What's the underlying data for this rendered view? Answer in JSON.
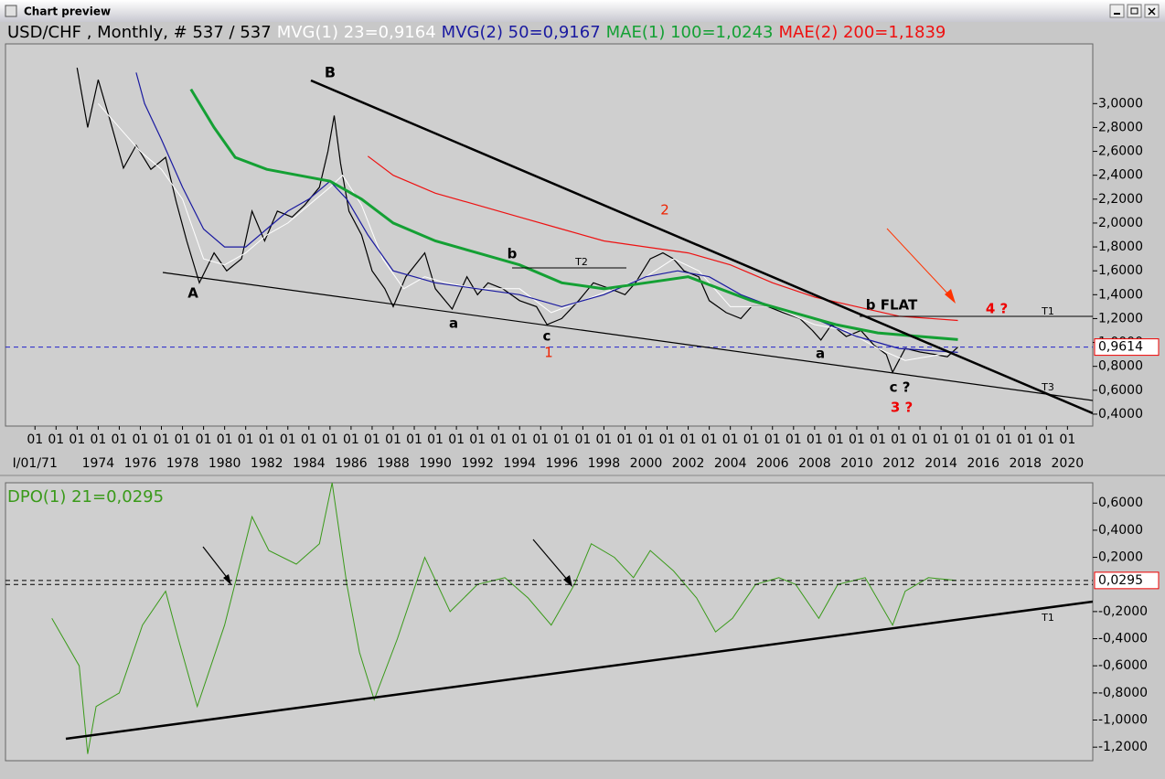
{
  "window": {
    "title": "Chart preview"
  },
  "chart_data": [
    {
      "type": "line",
      "series": [
        {
          "name": "USD/CHF , Monthly, # 537 / 537",
          "color": "#000000",
          "width": 1.2,
          "x": [
            1973.0,
            1973.5,
            1974.0,
            1974.5,
            1975.2,
            1975.8,
            1976.5,
            1977.2,
            1977.7,
            1978.2,
            1978.8,
            1979.5,
            1980.1,
            1980.8,
            1981.3,
            1981.9,
            1982.5,
            1983.2,
            1983.8,
            1984.5,
            1984.9,
            1985.2,
            1985.5,
            1985.9,
            1986.5,
            1987.0,
            1987.6,
            1988.0,
            1988.6,
            1989.5,
            1990.0,
            1990.8,
            1991.5,
            1992.0,
            1992.5,
            1993.2,
            1994.0,
            1994.8,
            1995.3,
            1996.0,
            1996.8,
            1997.5,
            1998.3,
            1999.0,
            1999.5,
            2000.2,
            2000.8,
            2001.3,
            2001.8,
            2002.5,
            2003.0,
            2003.8,
            2004.5,
            2005.0,
            2005.8,
            2006.5,
            2007.3,
            2007.9,
            2008.3,
            2008.8,
            2009.5,
            2010.2,
            2010.8,
            2011.4,
            2011.7,
            2012.3,
            2013.0,
            2013.7,
            2014.3,
            2014.8
          ],
          "values": [
            3.3,
            2.8,
            3.2,
            2.9,
            2.46,
            2.65,
            2.45,
            2.55,
            2.18,
            1.85,
            1.5,
            1.75,
            1.6,
            1.7,
            2.1,
            1.85,
            2.1,
            2.05,
            2.15,
            2.3,
            2.6,
            2.9,
            2.5,
            2.1,
            1.9,
            1.6,
            1.45,
            1.3,
            1.55,
            1.75,
            1.45,
            1.28,
            1.55,
            1.4,
            1.5,
            1.45,
            1.35,
            1.3,
            1.15,
            1.2,
            1.35,
            1.5,
            1.45,
            1.4,
            1.5,
            1.7,
            1.75,
            1.7,
            1.6,
            1.55,
            1.35,
            1.25,
            1.2,
            1.3,
            1.3,
            1.25,
            1.2,
            1.1,
            1.02,
            1.15,
            1.05,
            1.1,
            0.98,
            0.9,
            0.75,
            0.95,
            0.92,
            0.9,
            0.88,
            0.9614
          ]
        },
        {
          "name": "MVG(1) 23=0,9164",
          "color": "#ffffff",
          "width": 1,
          "x": [
            1974,
            1975,
            1976,
            1977,
            1978,
            1979,
            1980,
            1981,
            1982,
            1983,
            1984,
            1985,
            1985.6,
            1986.5,
            1987.5,
            1988.5,
            1989.5,
            1990.5,
            1992,
            1994,
            1995.5,
            1997,
            1998.5,
            2000,
            2001.3,
            2002.5,
            2004,
            2006,
            2008,
            2009.5,
            2011,
            2012.3,
            2014,
            2014.8
          ],
          "values": [
            3.0,
            2.8,
            2.6,
            2.45,
            2.2,
            1.7,
            1.65,
            1.75,
            1.9,
            2.0,
            2.15,
            2.3,
            2.4,
            2.15,
            1.7,
            1.45,
            1.55,
            1.5,
            1.45,
            1.45,
            1.25,
            1.35,
            1.45,
            1.55,
            1.7,
            1.6,
            1.3,
            1.3,
            1.15,
            1.1,
            0.95,
            0.85,
            0.9,
            0.9164
          ]
        },
        {
          "name": "MVG(2) 50=0,9167",
          "color": "#1a1aa0",
          "width": 1.2,
          "x": [
            1975.8,
            1976.2,
            1977,
            1978,
            1979,
            1980,
            1981,
            1982,
            1983,
            1984,
            1985,
            1985.8,
            1986.8,
            1988,
            1989,
            1990,
            1992,
            1994,
            1996,
            1998,
            2000,
            2001.5,
            2003,
            2004.5,
            2006,
            2008,
            2010,
            2012,
            2014.8
          ],
          "values": [
            3.26,
            3.0,
            2.7,
            2.3,
            1.95,
            1.8,
            1.8,
            1.95,
            2.1,
            2.2,
            2.35,
            2.2,
            1.9,
            1.6,
            1.55,
            1.5,
            1.45,
            1.4,
            1.3,
            1.4,
            1.55,
            1.6,
            1.55,
            1.4,
            1.3,
            1.2,
            1.05,
            0.95,
            0.9167
          ]
        },
        {
          "name": "MAE(1) 100=1,0243",
          "color": "#14a034",
          "width": 3,
          "x": [
            1978.4,
            1979.5,
            1980.5,
            1982,
            1983.5,
            1985,
            1986.5,
            1988,
            1990,
            1992,
            1994,
            1996,
            1998,
            2000,
            2002,
            2003.5,
            2005,
            2007,
            2009,
            2011,
            2013,
            2014.8
          ],
          "values": [
            3.12,
            2.8,
            2.55,
            2.45,
            2.4,
            2.35,
            2.2,
            2.0,
            1.85,
            1.75,
            1.65,
            1.5,
            1.45,
            1.5,
            1.55,
            1.45,
            1.35,
            1.25,
            1.15,
            1.08,
            1.05,
            1.0243
          ]
        },
        {
          "name": "MAE(2) 200=1,1839",
          "color": "#ee1111",
          "width": 1.2,
          "x": [
            1986.8,
            1988,
            1990,
            1992,
            1994,
            1996,
            1998,
            2000,
            2002,
            2004,
            2006,
            2008,
            2010,
            2012,
            2014.8
          ],
          "values": [
            2.56,
            2.4,
            2.25,
            2.15,
            2.05,
            1.95,
            1.85,
            1.8,
            1.75,
            1.65,
            1.5,
            1.38,
            1.3,
            1.22,
            1.1839
          ]
        }
      ],
      "last_value": 0.9614,
      "last_value_label": "0,9614",
      "xlim": [
        1969.6,
        2021.2
      ],
      "xticks": [
        {
          "value": 1971,
          "label": "01"
        },
        {
          "value": 1972,
          "label": "01"
        },
        {
          "value": 1973,
          "label": "01"
        },
        {
          "value": 1974,
          "label": "01"
        },
        {
          "value": 1975,
          "label": "01"
        },
        {
          "value": 1976,
          "label": "01"
        },
        {
          "value": 1977,
          "label": "01"
        },
        {
          "value": 1978,
          "label": "01"
        },
        {
          "value": 1979,
          "label": "01"
        },
        {
          "value": 1980,
          "label": "01"
        },
        {
          "value": 1981,
          "label": "01"
        },
        {
          "value": 1982,
          "label": "01"
        },
        {
          "value": 1983,
          "label": "01"
        },
        {
          "value": 1984,
          "label": "01"
        },
        {
          "value": 1985,
          "label": "01"
        },
        {
          "value": 1986,
          "label": "01"
        },
        {
          "value": 1987,
          "label": "01"
        },
        {
          "value": 1988,
          "label": "01"
        },
        {
          "value": 1989,
          "label": "01"
        },
        {
          "value": 1990,
          "label": "01"
        },
        {
          "value": 1991,
          "label": "01"
        },
        {
          "value": 1992,
          "label": "01"
        },
        {
          "value": 1993,
          "label": "01"
        },
        {
          "value": 1994,
          "label": "01"
        },
        {
          "value": 1995,
          "label": "01"
        },
        {
          "value": 1996,
          "label": "01"
        },
        {
          "value": 1997,
          "label": "01"
        },
        {
          "value": 1998,
          "label": "01"
        },
        {
          "value": 1999,
          "label": "01"
        },
        {
          "value": 2000,
          "label": "01"
        },
        {
          "value": 2001,
          "label": "01"
        },
        {
          "value": 2002,
          "label": "01"
        },
        {
          "value": 2003,
          "label": "01"
        },
        {
          "value": 2004,
          "label": "01"
        },
        {
          "value": 2005,
          "label": "01"
        },
        {
          "value": 2006,
          "label": "01"
        },
        {
          "value": 2007,
          "label": "01"
        },
        {
          "value": 2008,
          "label": "01"
        },
        {
          "value": 2009,
          "label": "01"
        },
        {
          "value": 2010,
          "label": "01"
        },
        {
          "value": 2011,
          "label": "01"
        },
        {
          "value": 2012,
          "label": "01"
        },
        {
          "value": 2013,
          "label": "01"
        },
        {
          "value": 2014,
          "label": "01"
        },
        {
          "value": 2015,
          "label": "01"
        },
        {
          "value": 2016,
          "label": "01"
        },
        {
          "value": 2017,
          "label": "01"
        },
        {
          "value": 2018,
          "label": "01"
        },
        {
          "value": 2019,
          "label": "01"
        },
        {
          "value": 2020,
          "label": "01"
        }
      ],
      "year_labels": [
        {
          "value": 1971,
          "label": "I/01/71"
        },
        1974,
        1976,
        1978,
        1980,
        1982,
        1984,
        1986,
        1988,
        1990,
        1992,
        1994,
        1996,
        1998,
        2000,
        2002,
        2004,
        2006,
        2008,
        2010,
        2012,
        2014,
        2016,
        2018,
        2020
      ],
      "ylim": [
        0.3,
        3.5
      ],
      "yticks": [
        {
          "value": 3.0,
          "label": "3,0000"
        },
        {
          "value": 2.8,
          "label": "2,8000"
        },
        {
          "value": 2.6,
          "label": "2,6000"
        },
        {
          "value": 2.4,
          "label": "2,4000"
        },
        {
          "value": 2.2,
          "label": "2,2000"
        },
        {
          "value": 2.0,
          "label": "2,0000"
        },
        {
          "value": 1.8,
          "label": "1,8000"
        },
        {
          "value": 1.6,
          "label": "1,6000"
        },
        {
          "value": 1.4,
          "label": "1,4000"
        },
        {
          "value": 1.2,
          "label": "1,2000"
        },
        {
          "value": 1.0,
          "label": "1,0000"
        },
        {
          "value": 0.8,
          "label": "0,8000"
        },
        {
          "value": 0.6,
          "label": "0,6000"
        },
        {
          "value": 0.4,
          "label": "0,4000"
        }
      ],
      "annotations": [
        {
          "text": "B",
          "color": "#000000"
        },
        {
          "text": "A",
          "color": "#000000"
        },
        {
          "text": "a",
          "color": "#000000"
        },
        {
          "text": "b",
          "color": "#000000"
        },
        {
          "text": "c",
          "color": "#000000"
        },
        {
          "text": "1",
          "color": "#ee2200"
        },
        {
          "text": "2",
          "color": "#ee2200"
        },
        {
          "text": "a",
          "color": "#000000"
        },
        {
          "text": "b FLAT",
          "color": "#000000"
        },
        {
          "text": "c ?",
          "color": "#000000"
        },
        {
          "text": "3 ?",
          "color": "#ee0000"
        },
        {
          "text": "4 ?",
          "color": "#ee0000"
        },
        {
          "text": "T2",
          "color": "#000000"
        },
        {
          "text": "T1",
          "color": "#000000"
        },
        {
          "text": "T3",
          "color": "#000000"
        }
      ]
    },
    {
      "type": "line",
      "series": [
        {
          "name": "DPO(1) 21=0,0295",
          "color": "#3a9a1a",
          "width": 1,
          "x": [
            1971.8,
            1973.1,
            1973.5,
            1973.9,
            1975.0,
            1976.1,
            1977.2,
            1977.8,
            1978.7,
            1980.0,
            1981.3,
            1982.1,
            1983.4,
            1984.5,
            1985.1,
            1985.8,
            1986.4,
            1987.1,
            1988.2,
            1989.5,
            1990.7,
            1992.0,
            1993.3,
            1994.4,
            1995.5,
            1996.6,
            1997.4,
            1998.5,
            1999.4,
            2000.2,
            2001.3,
            2002.4,
            2003.3,
            2004.1,
            2005.2,
            2006.3,
            2007.1,
            2008.2,
            2009.1,
            2010.4,
            2011.7,
            2012.3,
            2013.4,
            2014.7
          ],
          "values": [
            -0.25,
            -0.6,
            -1.25,
            -0.9,
            -0.8,
            -0.3,
            -0.05,
            -0.4,
            -0.9,
            -0.3,
            0.5,
            0.25,
            0.15,
            0.3,
            0.75,
            0.0,
            -0.5,
            -0.85,
            -0.4,
            0.2,
            -0.2,
            0.0,
            0.05,
            -0.1,
            -0.3,
            0.0,
            0.3,
            0.2,
            0.05,
            0.25,
            0.1,
            -0.1,
            -0.35,
            -0.25,
            0.0,
            0.05,
            0.0,
            -0.25,
            0.0,
            0.05,
            -0.3,
            -0.05,
            0.05,
            0.0295
          ]
        }
      ],
      "last_value": 0.0295,
      "last_value_label": "0,0295",
      "zero_line": 0,
      "ylim": [
        -1.3,
        0.75
      ],
      "yticks": [
        {
          "value": 0.6,
          "label": "0,6000"
        },
        {
          "value": 0.4,
          "label": "0,4000"
        },
        {
          "value": 0.2,
          "label": "0,2000"
        },
        {
          "value": -0.2,
          "label": "-0,2000"
        },
        {
          "value": -0.4,
          "label": "-0,4000"
        },
        {
          "value": -0.6,
          "label": "-0,6000"
        },
        {
          "value": -0.8,
          "label": "-0,8000"
        },
        {
          "value": -1.0,
          "label": "-1,0000"
        },
        {
          "value": -1.2,
          "label": "-1,2000"
        }
      ],
      "annotations": [
        {
          "text": "T1",
          "color": "#000000"
        }
      ]
    }
  ]
}
